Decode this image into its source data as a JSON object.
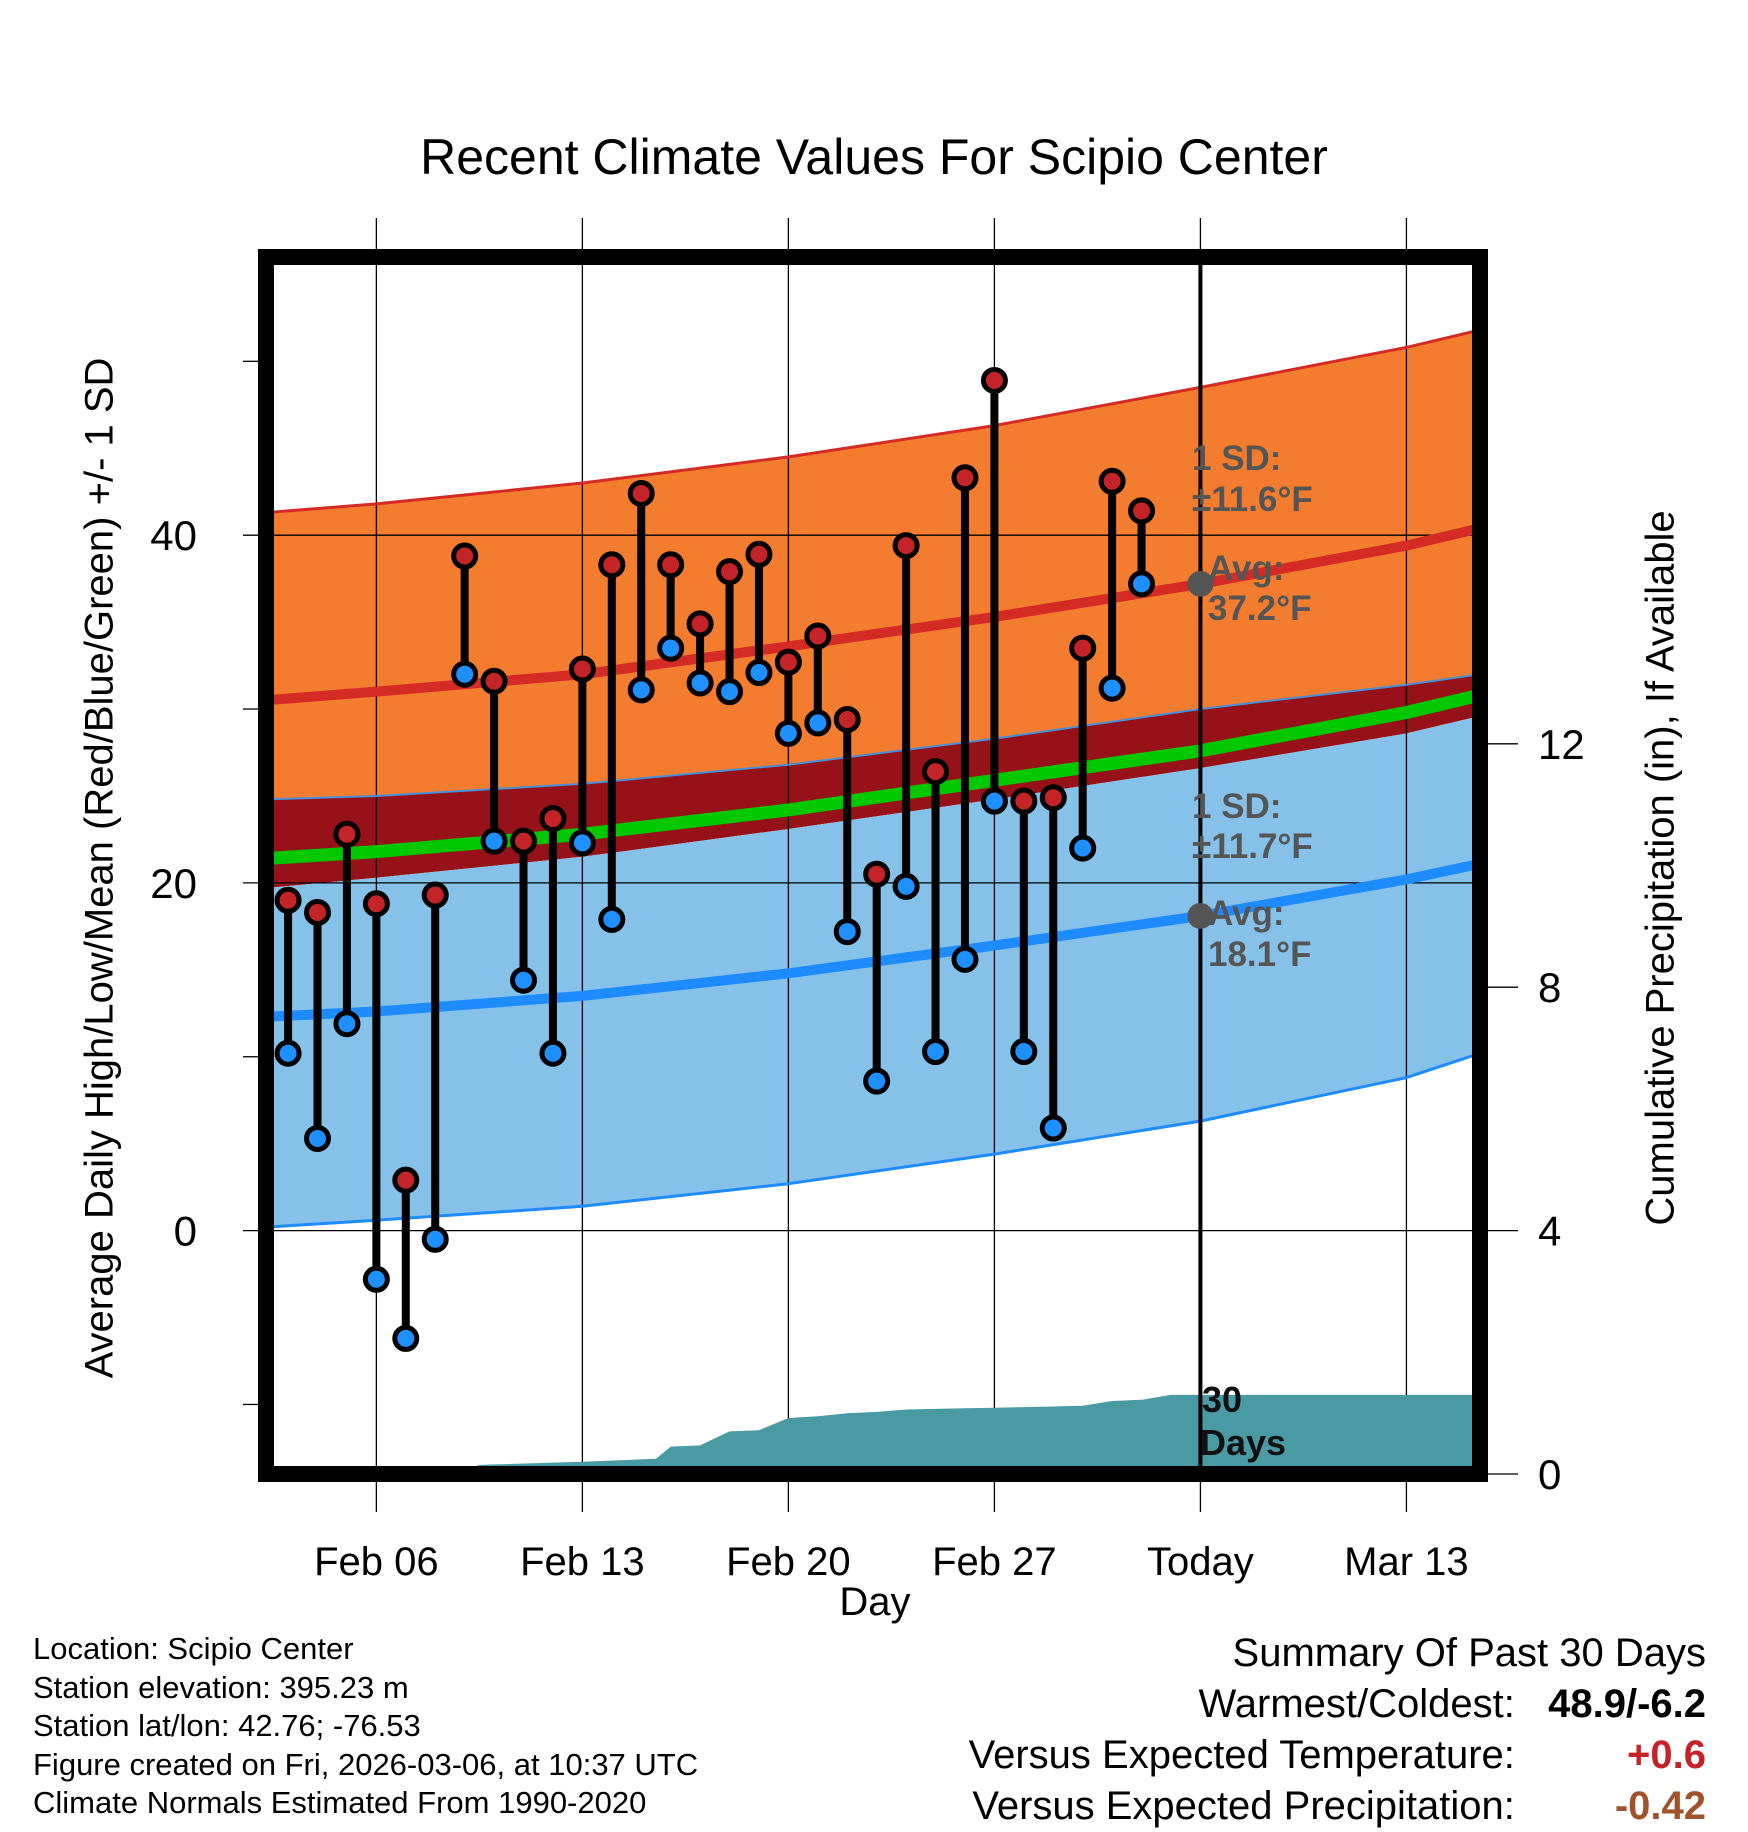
{
  "chart_data": {
    "type": "line",
    "title": "Recent Climate Values For Scipio Center",
    "xlabel": "Day",
    "ylabel": "Average Daily High/Low/Mean (Red/Blue/Green) +/- 1 SD",
    "y2label": "Cumulative Precipitation (in), If Available",
    "ylim": [
      -14,
      56
    ],
    "y_ticks": [
      0,
      20,
      40
    ],
    "y2lim": [
      0,
      20
    ],
    "y2_ticks": [
      0,
      4,
      8,
      12
    ],
    "x_tick_labels": [
      "Feb 06",
      "Feb 13",
      "Feb 20",
      "Feb 27",
      "Today",
      "Mar 13"
    ],
    "x_tick_days": [
      3,
      10,
      17,
      24,
      31,
      38
    ],
    "xlim": [
      -0.75,
      40.5
    ],
    "grid": true,
    "normals": {
      "days": [
        -0.75,
        3,
        10,
        17,
        24,
        31,
        38,
        40.5
      ],
      "high_avg": [
        30.5,
        31.0,
        32.0,
        33.6,
        35.3,
        37.2,
        39.4,
        40.4
      ],
      "high_plus_sd": [
        41.3,
        41.8,
        43.0,
        44.5,
        46.3,
        48.5,
        50.8,
        51.8
      ],
      "high_minus_sd": [
        24.8,
        25.0,
        25.7,
        26.8,
        28.3,
        30.0,
        31.4,
        32.0
      ],
      "low_avg": [
        12.3,
        12.6,
        13.5,
        14.8,
        16.4,
        18.1,
        20.2,
        21.1
      ],
      "low_plus_sd": [
        19.7,
        20.3,
        21.5,
        23.1,
        24.8,
        26.6,
        28.6,
        29.6
      ],
      "low_minus_sd": [
        0.2,
        0.6,
        1.4,
        2.7,
        4.4,
        6.3,
        8.8,
        10.2
      ],
      "mean_avg": [
        21.4,
        21.8,
        22.8,
        24.2,
        25.9,
        27.6,
        29.8,
        30.8
      ]
    },
    "series": [
      {
        "name": "High",
        "color": "#c42428",
        "x": [
          0,
          1,
          2,
          3,
          4,
          5,
          6,
          7,
          8,
          9,
          10,
          11,
          12,
          13,
          14,
          15,
          16,
          17,
          18,
          19,
          20,
          21,
          22,
          23,
          24,
          25,
          26,
          27,
          28,
          29
        ],
        "values": [
          19.0,
          18.3,
          22.8,
          18.8,
          2.9,
          19.3,
          38.8,
          31.6,
          22.4,
          23.7,
          32.3,
          38.3,
          42.4,
          38.3,
          34.9,
          37.9,
          38.9,
          32.7,
          34.2,
          29.4,
          20.5,
          39.4,
          26.4,
          43.3,
          48.9,
          24.7,
          24.9,
          33.5,
          43.1,
          41.4
        ]
      },
      {
        "name": "Low",
        "color": "#1e90ff",
        "x": [
          0,
          1,
          2,
          3,
          4,
          5,
          6,
          7,
          8,
          9,
          10,
          11,
          12,
          13,
          14,
          15,
          16,
          17,
          18,
          19,
          20,
          21,
          22,
          23,
          24,
          25,
          26,
          27,
          28,
          29
        ],
        "values": [
          10.2,
          5.3,
          11.9,
          -2.8,
          -6.2,
          -0.5,
          32.0,
          22.4,
          14.4,
          10.2,
          22.3,
          17.9,
          31.1,
          33.5,
          31.5,
          31.0,
          32.1,
          28.6,
          29.2,
          17.2,
          8.6,
          19.8,
          10.3,
          15.6,
          24.7,
          10.3,
          5.9,
          22.0,
          31.2,
          37.2
        ]
      },
      {
        "name": "Cumulative Precipitation",
        "color": "#4a9aa4",
        "x": [
          5.5,
          6.5,
          10,
          12.5,
          13,
          14,
          15,
          16,
          17,
          18,
          19,
          20,
          21,
          22,
          23,
          24,
          25,
          26,
          27,
          28,
          29,
          30,
          31,
          32,
          33,
          34,
          35,
          36,
          37,
          38,
          39,
          40,
          40.5
        ],
        "values": [
          0.0,
          0.15,
          0.2,
          0.25,
          0.45,
          0.47,
          0.7,
          0.72,
          0.92,
          0.95,
          1.0,
          1.02,
          1.06,
          1.07,
          1.08,
          1.09,
          1.1,
          1.11,
          1.12,
          1.2,
          1.22,
          1.3,
          1.3,
          1.3,
          1.3,
          1.3,
          1.3,
          1.3,
          1.3,
          1.3,
          1.3,
          1.3,
          1.3
        ]
      }
    ],
    "annotations": {
      "high_sd": "±11.6°F",
      "high_avg": "37.2°F",
      "low_sd": "±11.7°F",
      "low_avg": "18.1°F",
      "sd_label": "1 SD:",
      "avg_label": "Avg:",
      "window_label": "30 Days"
    },
    "today_day": 31
  },
  "footer": {
    "location": "Location: Scipio Center",
    "elevation": "Station elevation: 395.23 m",
    "latlon": "Station lat/lon: 42.76; -76.53",
    "created": "Figure created on Fri, 2026-03-06, at 10:37 UTC",
    "normals": "Climate Normals Estimated From 1990-2020"
  },
  "summary": {
    "heading": "Summary Of Past 30 Days",
    "warm_cold_label": "Warmest/Coldest:",
    "warm_cold_value": "48.9/-6.2",
    "temp_label": "Versus Expected Temperature:",
    "temp_value": "+0.6",
    "precip_label": "Versus Expected Precipitation:",
    "precip_value": "-0.42"
  },
  "colors": {
    "high_band": "#f47c2f",
    "low_band": "#85c1e9",
    "gap_band": "#961218",
    "mean_line": "#00c800",
    "high_line": "#d42b25",
    "low_line": "#1e8cff",
    "precip_fill": "#4a9aa4",
    "annot_text": "#555555"
  }
}
